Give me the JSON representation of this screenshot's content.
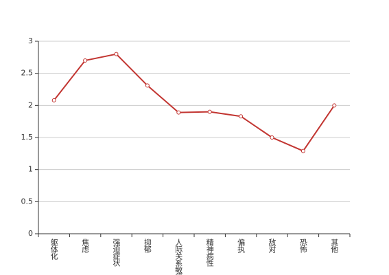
{
  "chart_data": {
    "type": "line",
    "categories": [
      "躯体化",
      "焦虑",
      "强迫症状",
      "抑郁",
      "人际关系敏感",
      "精神病性",
      "偏执",
      "敌对",
      "恐怖",
      "其他"
    ],
    "values": [
      2.08,
      2.7,
      2.8,
      2.31,
      1.89,
      1.9,
      1.83,
      1.5,
      1.29,
      2.0
    ],
    "color": "#c23531",
    "ylim": [
      0,
      3
    ],
    "yticks": [
      0,
      0.5,
      1,
      1.5,
      2,
      2.5,
      3
    ],
    "grid": true
  }
}
